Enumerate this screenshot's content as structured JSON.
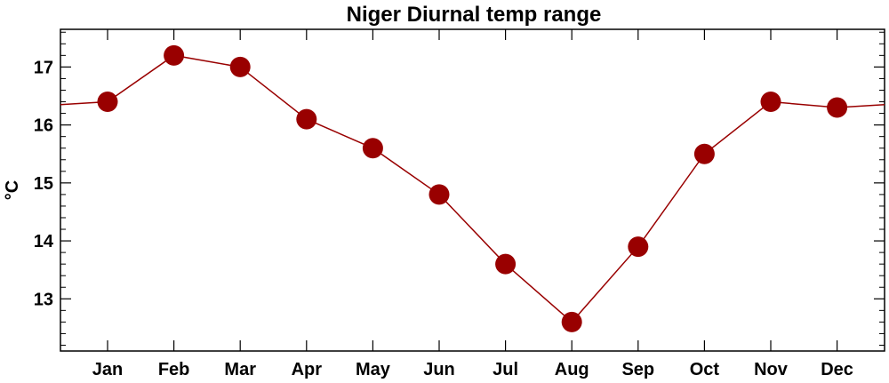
{
  "chart_data": {
    "type": "line",
    "title": "Niger Diurnal temp range",
    "ylabel": "°C",
    "xlabel": "",
    "categories": [
      "Jan",
      "Feb",
      "Mar",
      "Apr",
      "May",
      "Jun",
      "Jul",
      "Aug",
      "Sep",
      "Oct",
      "Nov",
      "Dec"
    ],
    "series": [
      {
        "values": [
          16.4,
          17.2,
          17.0,
          16.1,
          15.6,
          14.8,
          13.6,
          12.6,
          13.9,
          15.5,
          16.4,
          16.3
        ]
      }
    ],
    "ylim": [
      12.1,
      17.65
    ],
    "yticks": [
      13,
      14,
      15,
      16,
      17
    ],
    "ytick_labels": [
      "13",
      "14",
      "15",
      "16",
      "17"
    ],
    "y_minor_step": 0.2,
    "grid": false,
    "colors": {
      "line": "#990000",
      "marker": "#990000",
      "axis": "#000000"
    }
  }
}
